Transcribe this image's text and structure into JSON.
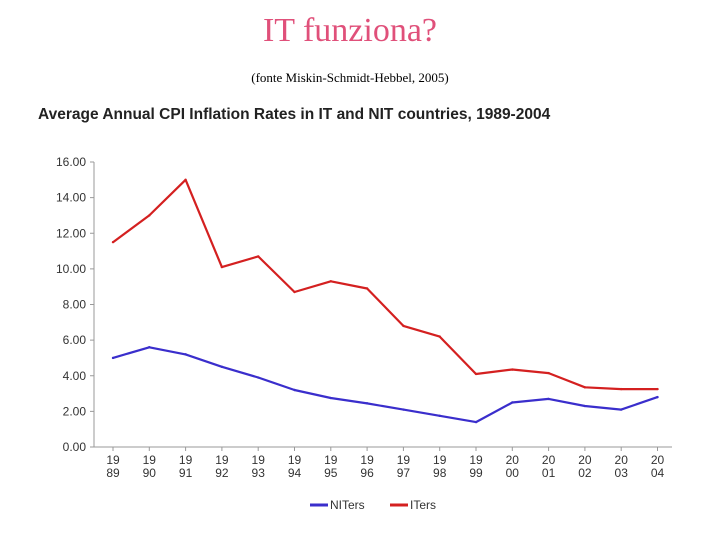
{
  "slide": {
    "title": "IT funziona?",
    "subtitle": "(fonte Miskin-Schmidt-Hebbel, 2005)"
  },
  "chart_data": {
    "type": "line",
    "title": "Average Annual CPI Inflation Rates in IT and NIT countries, 1989-2004",
    "xlabel": "",
    "ylabel": "",
    "categories": [
      [
        "19",
        "89"
      ],
      [
        "19",
        "90"
      ],
      [
        "19",
        "91"
      ],
      [
        "19",
        "92"
      ],
      [
        "19",
        "93"
      ],
      [
        "19",
        "94"
      ],
      [
        "19",
        "95"
      ],
      [
        "19",
        "96"
      ],
      [
        "19",
        "97"
      ],
      [
        "19",
        "98"
      ],
      [
        "19",
        "99"
      ],
      [
        "20",
        "00"
      ],
      [
        "20",
        "01"
      ],
      [
        "20",
        "02"
      ],
      [
        "20",
        "03"
      ],
      [
        "20",
        "04"
      ]
    ],
    "y_ticks": [
      "0.00",
      "2.00",
      "4.00",
      "6.00",
      "8.00",
      "10.00",
      "12.00",
      "14.00",
      "16.00"
    ],
    "ylim": [
      0,
      16
    ],
    "grid": false,
    "legend_position": "bottom",
    "series": [
      {
        "name": "NITers",
        "color": "#3a2ecc",
        "values": [
          5.0,
          5.6,
          5.2,
          4.5,
          3.9,
          3.2,
          2.75,
          2.45,
          2.1,
          1.75,
          1.4,
          2.5,
          2.7,
          2.3,
          2.1,
          2.8
        ]
      },
      {
        "name": "ITers",
        "color": "#d42020",
        "values": [
          11.5,
          13.0,
          15.0,
          10.1,
          10.7,
          8.7,
          9.3,
          8.9,
          6.8,
          6.2,
          4.1,
          4.35,
          4.15,
          3.35,
          3.25,
          3.25
        ]
      }
    ]
  }
}
